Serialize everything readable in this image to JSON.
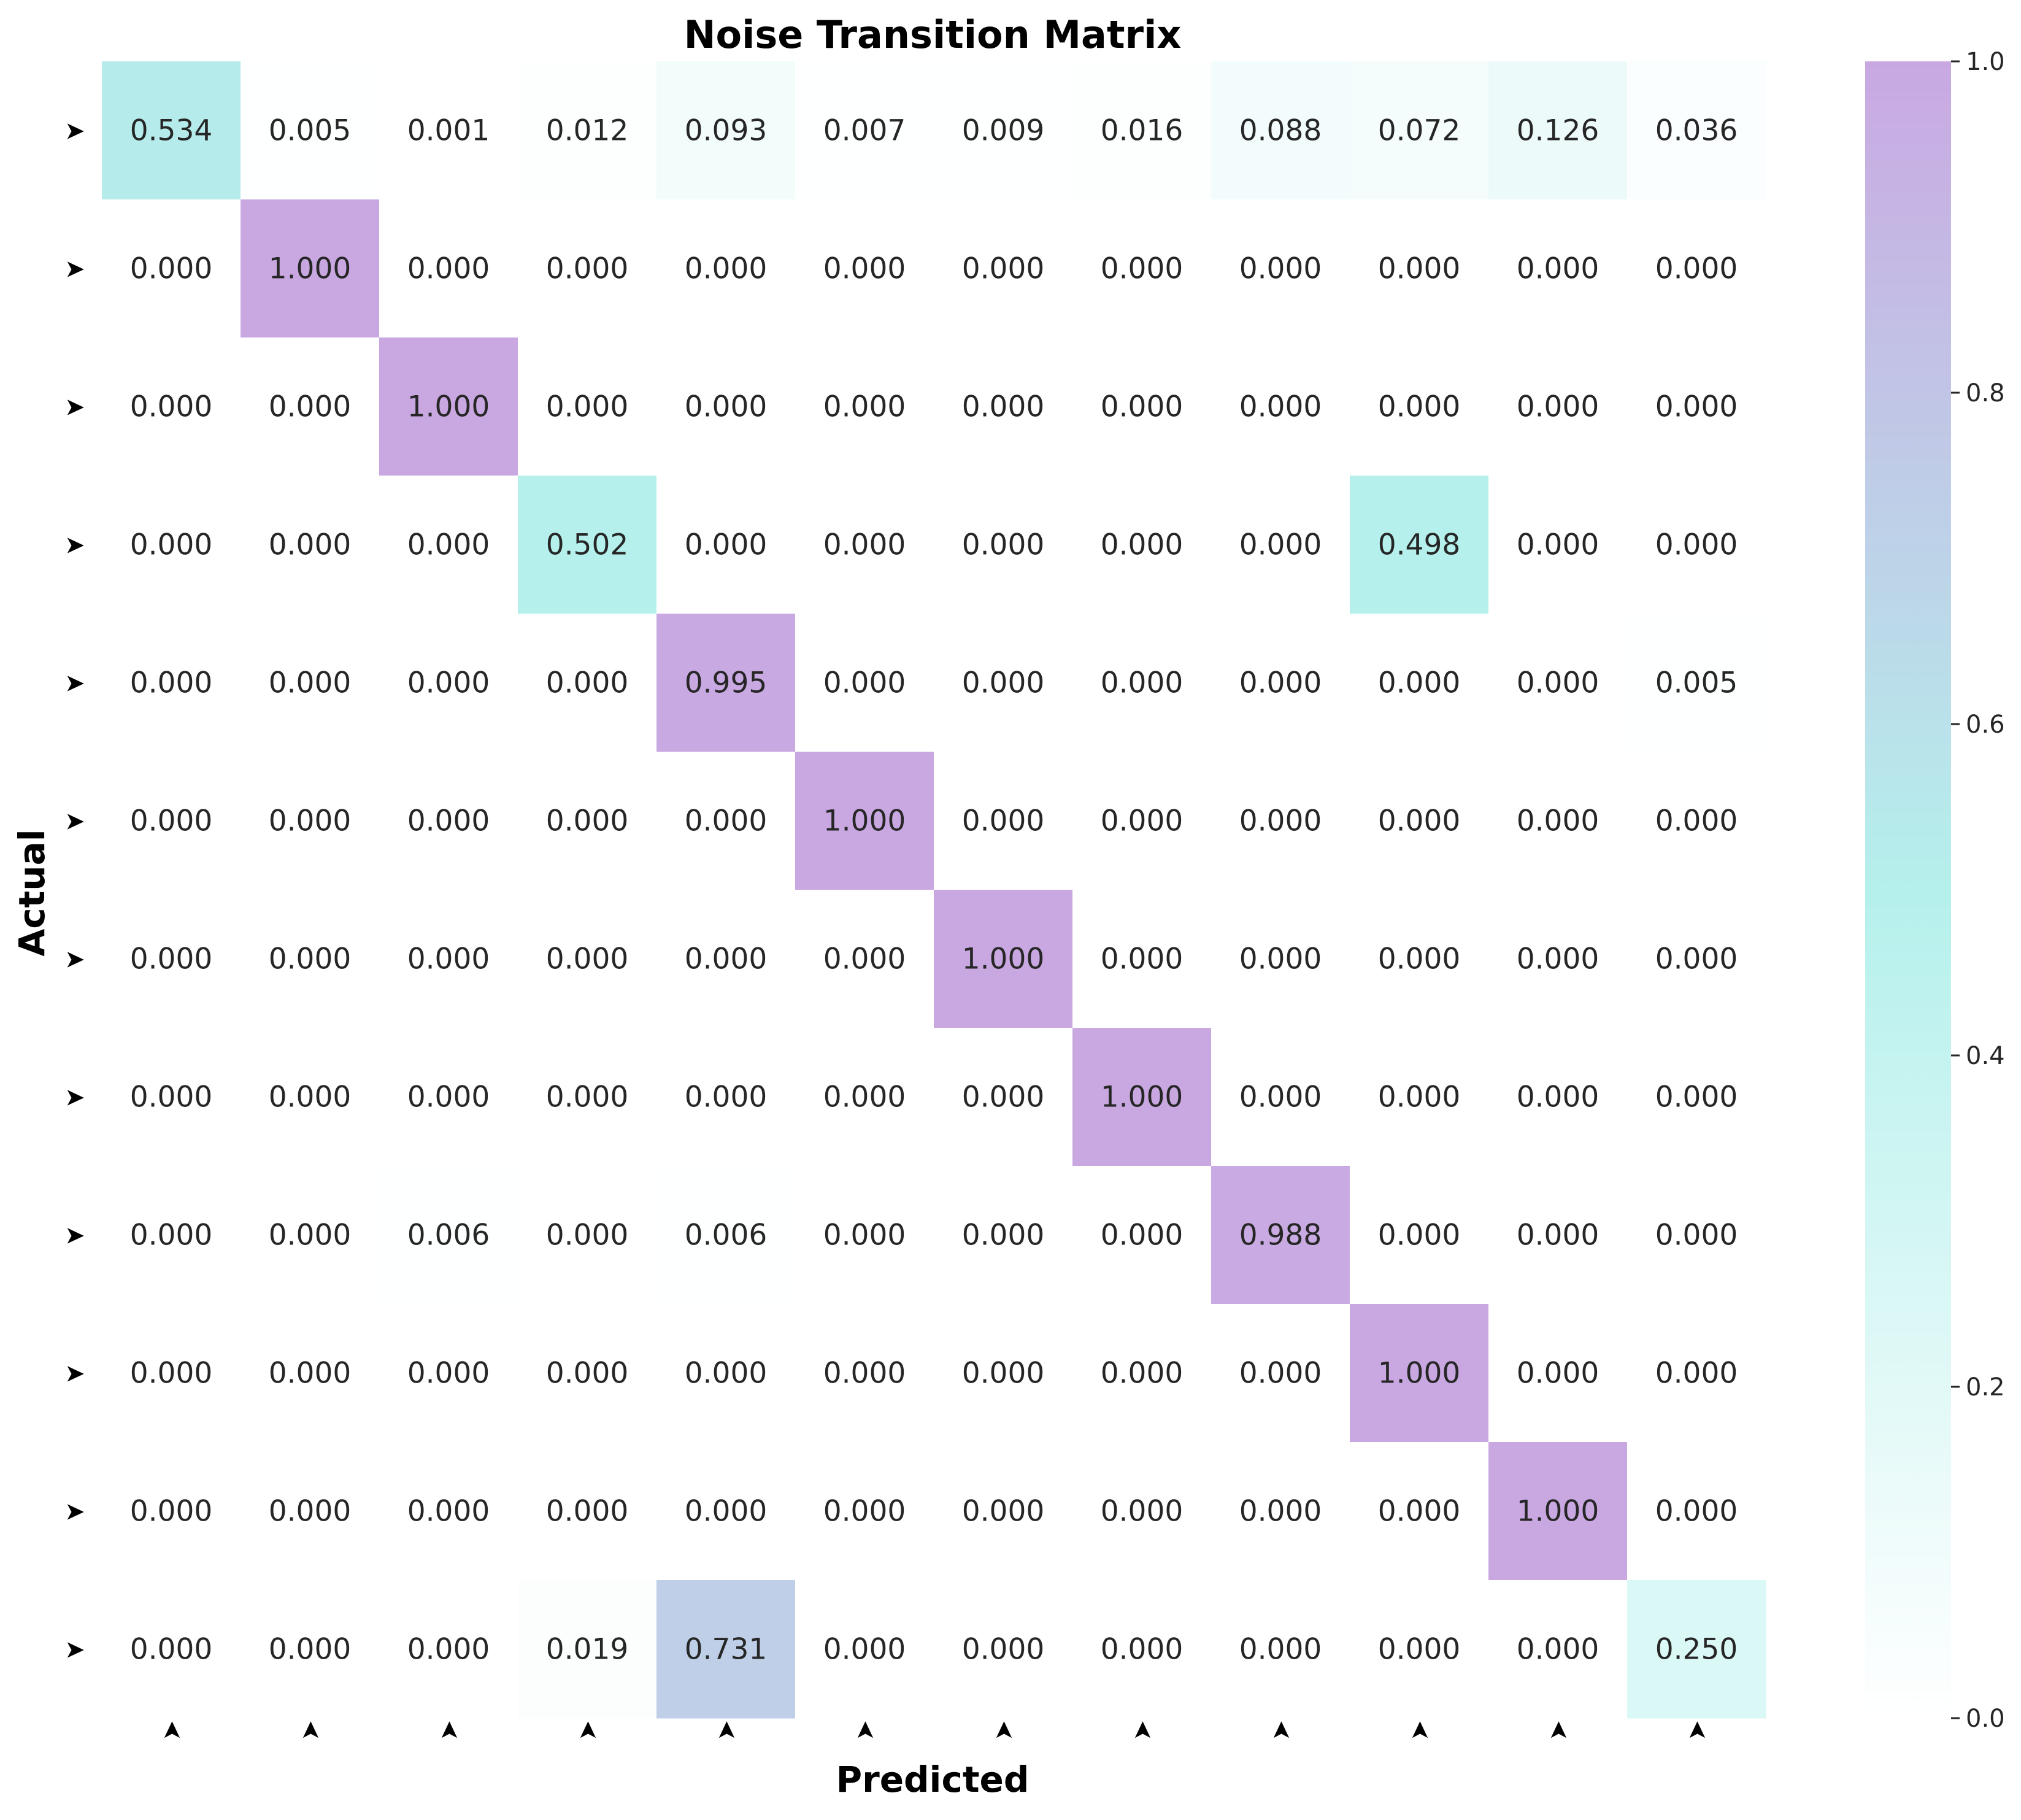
{
  "chart_data": {
    "type": "heatmap",
    "title": "Noise Transition Matrix",
    "xlabel": "Predicted",
    "ylabel": "Actual",
    "row_tick_marker": "➤",
    "col_tick_marker": "➤",
    "matrix": [
      [
        0.534,
        0.005,
        0.001,
        0.012,
        0.093,
        0.007,
        0.009,
        0.016,
        0.088,
        0.072,
        0.126,
        0.036
      ],
      [
        0.0,
        1.0,
        0.0,
        0.0,
        0.0,
        0.0,
        0.0,
        0.0,
        0.0,
        0.0,
        0.0,
        0.0
      ],
      [
        0.0,
        0.0,
        1.0,
        0.0,
        0.0,
        0.0,
        0.0,
        0.0,
        0.0,
        0.0,
        0.0,
        0.0
      ],
      [
        0.0,
        0.0,
        0.0,
        0.502,
        0.0,
        0.0,
        0.0,
        0.0,
        0.0,
        0.498,
        0.0,
        0.0
      ],
      [
        0.0,
        0.0,
        0.0,
        0.0,
        0.995,
        0.0,
        0.0,
        0.0,
        0.0,
        0.0,
        0.0,
        0.005
      ],
      [
        0.0,
        0.0,
        0.0,
        0.0,
        0.0,
        1.0,
        0.0,
        0.0,
        0.0,
        0.0,
        0.0,
        0.0
      ],
      [
        0.0,
        0.0,
        0.0,
        0.0,
        0.0,
        0.0,
        1.0,
        0.0,
        0.0,
        0.0,
        0.0,
        0.0
      ],
      [
        0.0,
        0.0,
        0.0,
        0.0,
        0.0,
        0.0,
        0.0,
        1.0,
        0.0,
        0.0,
        0.0,
        0.0
      ],
      [
        0.0,
        0.0,
        0.006,
        0.0,
        0.006,
        0.0,
        0.0,
        0.0,
        0.988,
        0.0,
        0.0,
        0.0
      ],
      [
        0.0,
        0.0,
        0.0,
        0.0,
        0.0,
        0.0,
        0.0,
        0.0,
        0.0,
        1.0,
        0.0,
        0.0
      ],
      [
        0.0,
        0.0,
        0.0,
        0.0,
        0.0,
        0.0,
        0.0,
        0.0,
        0.0,
        0.0,
        1.0,
        0.0
      ],
      [
        0.0,
        0.0,
        0.0,
        0.019,
        0.731,
        0.0,
        0.0,
        0.0,
        0.0,
        0.0,
        0.0,
        0.25
      ]
    ],
    "value_format_decimals": 3,
    "colorbar": {
      "range": [
        0.0,
        1.0
      ],
      "ticks": [
        "0.0",
        "0.2",
        "0.4",
        "0.6",
        "0.8",
        "1.0"
      ],
      "colors": {
        "low": "#ffffff",
        "mid": "#b5f0ec",
        "high": "#c9a8e2"
      }
    }
  }
}
